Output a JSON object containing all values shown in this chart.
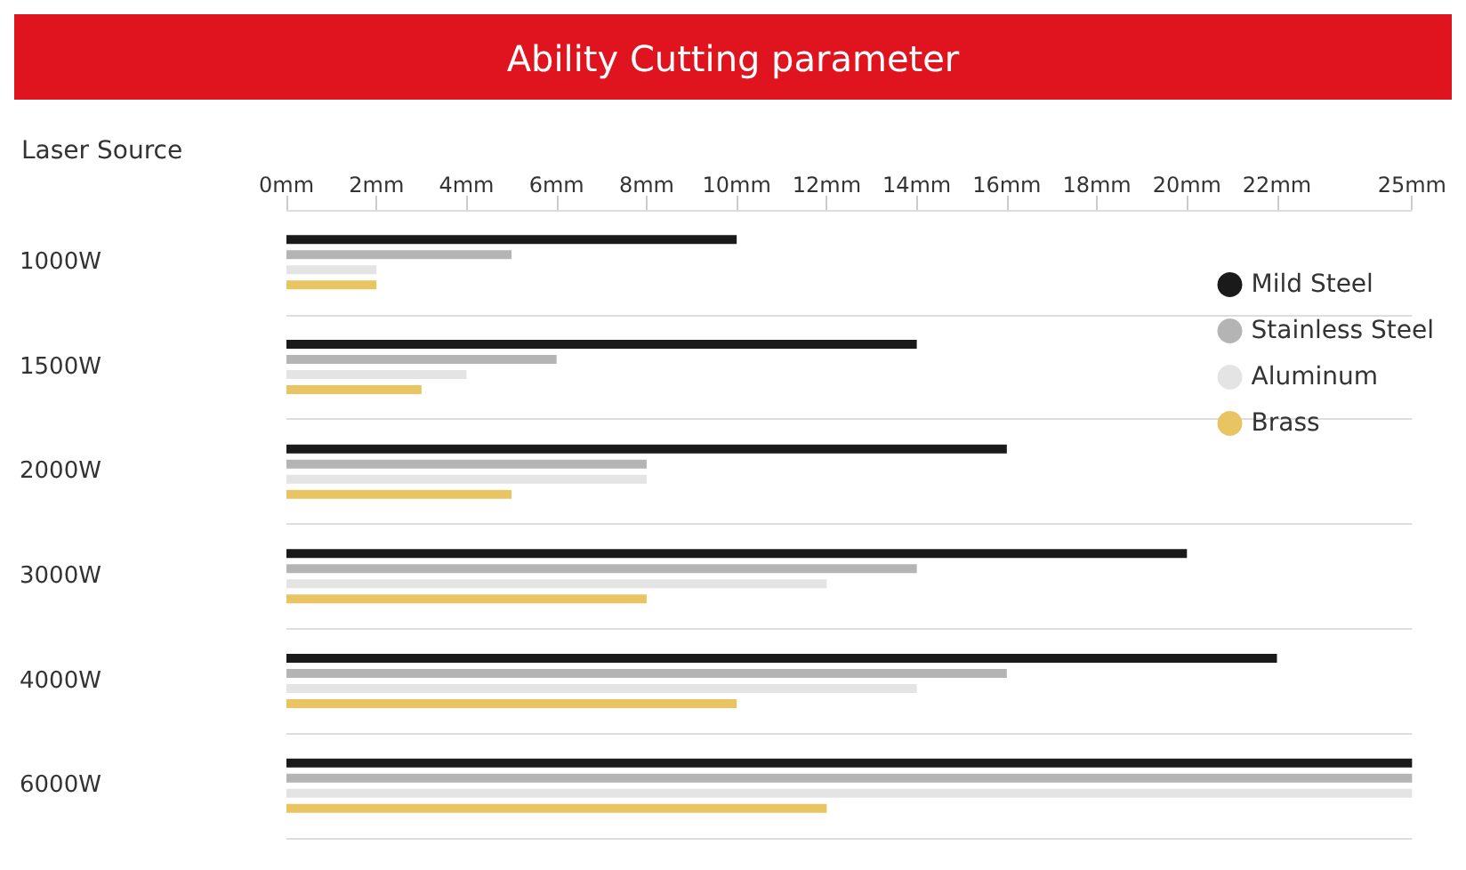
{
  "chart_data": {
    "type": "bar",
    "orientation": "horizontal",
    "title": "Ability Cutting parameter",
    "ylabel": "Laser Source",
    "categories": [
      "1000W",
      "1500W",
      "2000W",
      "3000W",
      "4000W",
      "6000W"
    ],
    "series": [
      {
        "name": "Mild Steel",
        "color": "#1a1a1a",
        "values": [
          10,
          14,
          16,
          20,
          22,
          25
        ]
      },
      {
        "name": "Stainless Steel",
        "color": "#b4b4b4",
        "values": [
          5,
          6,
          8,
          14,
          16,
          25
        ]
      },
      {
        "name": "Aluminum",
        "color": "#e4e4e4",
        "values": [
          2,
          4,
          8,
          12,
          14,
          25
        ]
      },
      {
        "name": "Brass",
        "color": "#e8c462",
        "values": [
          2,
          3,
          5,
          8,
          10,
          12
        ]
      }
    ],
    "xlim": [
      0,
      25
    ],
    "xticks": [
      {
        "value": 0,
        "label": "0mm"
      },
      {
        "value": 2,
        "label": "2mm"
      },
      {
        "value": 4,
        "label": "4mm"
      },
      {
        "value": 6,
        "label": "6mm"
      },
      {
        "value": 8,
        "label": "8mm"
      },
      {
        "value": 10,
        "label": "10mm"
      },
      {
        "value": 12,
        "label": "12mm"
      },
      {
        "value": 14,
        "label": "14mm"
      },
      {
        "value": 16,
        "label": "16mm"
      },
      {
        "value": 18,
        "label": "18mm"
      },
      {
        "value": 20,
        "label": "20mm"
      },
      {
        "value": 22,
        "label": "22mm"
      },
      {
        "value": 25,
        "label": "25mm"
      }
    ],
    "grid": "y",
    "legend": "right"
  }
}
